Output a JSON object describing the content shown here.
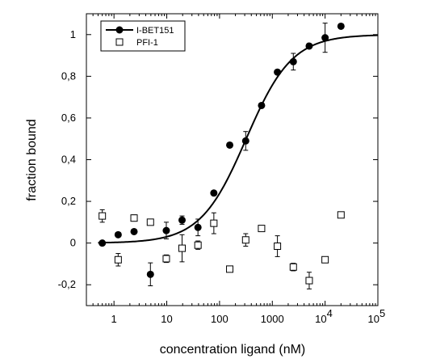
{
  "chart_data": {
    "type": "scatter",
    "xlabel": "concentration ligand (nM)",
    "ylabel": "fraction bound",
    "x_scale": "log",
    "xlim": [
      0.3,
      100000
    ],
    "ylim": [
      -0.3,
      1.1
    ],
    "x_ticks": [
      {
        "value": 1,
        "label": "1",
        "exp": ""
      },
      {
        "value": 10,
        "label": "10",
        "exp": ""
      },
      {
        "value": 100,
        "label": "100",
        "exp": ""
      },
      {
        "value": 1000,
        "label": "1000",
        "exp": ""
      },
      {
        "value": 10000,
        "label": "10",
        "exp": "4"
      },
      {
        "value": 100000,
        "label": "10",
        "exp": "5"
      }
    ],
    "y_ticks": [
      {
        "value": -0.2,
        "label": "-0,2"
      },
      {
        "value": 0,
        "label": "0"
      },
      {
        "value": 0.2,
        "label": "0,2"
      },
      {
        "value": 0.4,
        "label": "0,4"
      },
      {
        "value": 0.6,
        "label": "0,6"
      },
      {
        "value": 0.8,
        "label": "0,8"
      },
      {
        "value": 1,
        "label": "1"
      }
    ],
    "legend": {
      "position": "top-left"
    },
    "series": [
      {
        "name": "I-BET151",
        "marker": "filled-circle",
        "color": "#000000",
        "fit_line": {
          "bottom": 0,
          "top": 1,
          "ec50": 320,
          "hill": 1
        },
        "points": [
          {
            "x": 0.6,
            "y": 0.0,
            "err": 0
          },
          {
            "x": 1.2,
            "y": 0.04,
            "err": 0
          },
          {
            "x": 2.4,
            "y": 0.055,
            "err": 0
          },
          {
            "x": 4.9,
            "y": -0.15,
            "err": 0.055
          },
          {
            "x": 9.8,
            "y": 0.06,
            "err": 0.04
          },
          {
            "x": 19.5,
            "y": 0.11,
            "err": 0.02
          },
          {
            "x": 39,
            "y": 0.075,
            "err": 0.04
          },
          {
            "x": 78,
            "y": 0.24,
            "err": 0
          },
          {
            "x": 156,
            "y": 0.47,
            "err": 0
          },
          {
            "x": 313,
            "y": 0.49,
            "err": 0.045
          },
          {
            "x": 625,
            "y": 0.66,
            "err": 0
          },
          {
            "x": 1250,
            "y": 0.82,
            "err": 0
          },
          {
            "x": 2500,
            "y": 0.87,
            "err": 0.04
          },
          {
            "x": 5000,
            "y": 0.945,
            "err": 0
          },
          {
            "x": 10000,
            "y": 0.985,
            "err": 0.07
          },
          {
            "x": 20000,
            "y": 1.04,
            "err": 0
          }
        ]
      },
      {
        "name": "PFI-1",
        "marker": "open-square",
        "color": "#000000",
        "points": [
          {
            "x": 0.6,
            "y": 0.13,
            "err": 0.03
          },
          {
            "x": 1.2,
            "y": -0.08,
            "err": 0.03
          },
          {
            "x": 2.4,
            "y": 0.12,
            "err": 0.015
          },
          {
            "x": 4.9,
            "y": 0.1,
            "err": 0.012
          },
          {
            "x": 9.8,
            "y": -0.075,
            "err": 0.018
          },
          {
            "x": 19.5,
            "y": -0.025,
            "err": 0.065
          },
          {
            "x": 39,
            "y": -0.01,
            "err": 0.02
          },
          {
            "x": 78,
            "y": 0.095,
            "err": 0.05
          },
          {
            "x": 156,
            "y": -0.125,
            "err": 0.01
          },
          {
            "x": 313,
            "y": 0.015,
            "err": 0.03
          },
          {
            "x": 625,
            "y": 0.07,
            "err": 0.012
          },
          {
            "x": 1250,
            "y": -0.015,
            "err": 0.05
          },
          {
            "x": 2500,
            "y": -0.115,
            "err": 0.018
          },
          {
            "x": 5000,
            "y": -0.18,
            "err": 0.04
          },
          {
            "x": 10000,
            "y": -0.08,
            "err": 0.01
          },
          {
            "x": 20000,
            "y": 0.135,
            "err": 0.01
          }
        ]
      }
    ]
  }
}
